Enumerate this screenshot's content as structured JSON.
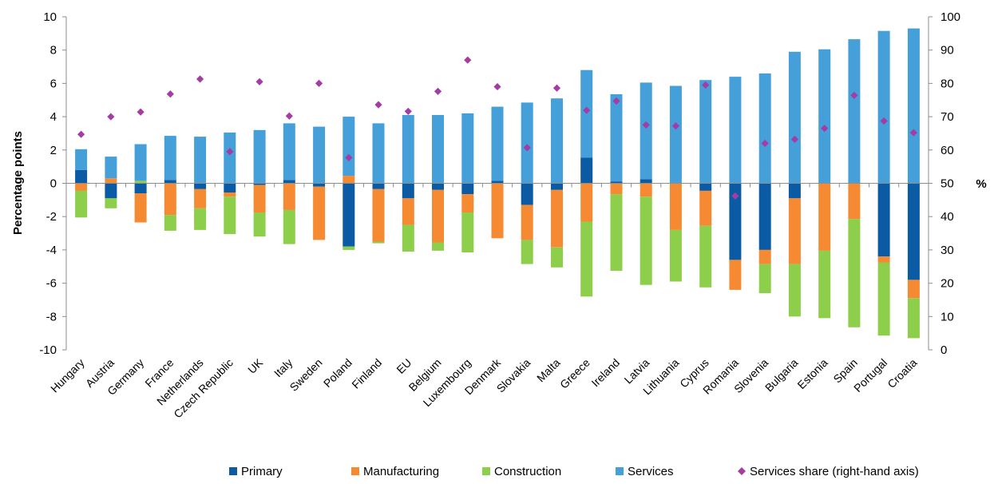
{
  "chart_data": {
    "type": "bar",
    "stacked": true,
    "title": "",
    "ylabel": "Percentage points",
    "y2label": "%",
    "ylim": [
      -10,
      10
    ],
    "y2lim": [
      0,
      100
    ],
    "yticks": [
      -10,
      -8,
      -6,
      -4,
      -2,
      0,
      2,
      4,
      6,
      8,
      10
    ],
    "y2ticks": [
      0,
      10,
      20,
      30,
      40,
      50,
      60,
      70,
      80,
      90,
      100
    ],
    "grid": false,
    "legend_position": "bottom",
    "categories": [
      "Hungary",
      "Austria",
      "Germany",
      "France",
      "Netherlands",
      "Czech Republic",
      "UK",
      "Italy",
      "Sweden",
      "Poland",
      "Finland",
      "EU",
      "Belgium",
      "Luxembourg",
      "Denmark",
      "Slovakia",
      "Malta",
      "Greece",
      "Ireland",
      "Latvia",
      "Lithuania",
      "Cyprus",
      "Romania",
      "Slovenia",
      "Bulgaria",
      "Estonia",
      "Spain",
      "Portugal",
      "Croatia"
    ],
    "series": [
      {
        "name": "Primary",
        "color": "#0b5aa4",
        "values": [
          0.8,
          -0.9,
          -0.6,
          0.2,
          -0.35,
          -0.55,
          -0.1,
          0.2,
          -0.2,
          -3.8,
          -0.35,
          -0.9,
          -0.4,
          -0.65,
          0.15,
          -1.3,
          -0.4,
          1.55,
          0.1,
          0.25,
          0.0,
          -0.45,
          -4.6,
          -4.0,
          -0.9,
          0.0,
          0.0,
          -4.4,
          -5.8
        ]
      },
      {
        "name": "Manufacturing",
        "color": "#f58a32",
        "values": [
          -0.45,
          0.3,
          -1.75,
          -1.9,
          -1.15,
          -0.25,
          -1.65,
          -1.6,
          -3.2,
          0.45,
          -3.15,
          -1.6,
          -3.15,
          -1.1,
          -3.3,
          -2.1,
          -3.45,
          -2.3,
          -0.65,
          -0.8,
          -2.8,
          -2.1,
          -1.8,
          -0.85,
          -3.95,
          -4.05,
          -2.15,
          -0.35,
          -1.1
        ]
      },
      {
        "name": "Construction",
        "color": "#8dcf4a",
        "values": [
          -1.6,
          -0.6,
          0.15,
          -0.95,
          -1.3,
          -2.25,
          -1.45,
          -2.05,
          0.0,
          -0.2,
          -0.1,
          -1.6,
          -0.5,
          -2.4,
          0.0,
          -1.45,
          -1.2,
          -4.5,
          -4.6,
          -5.3,
          -3.1,
          -3.7,
          0.0,
          -1.75,
          -3.15,
          -4.05,
          -6.5,
          -4.4,
          -2.4
        ]
      },
      {
        "name": "Services",
        "color": "#459fd9",
        "values": [
          1.25,
          1.3,
          2.2,
          2.65,
          2.8,
          3.05,
          3.2,
          3.4,
          3.4,
          3.55,
          3.6,
          4.1,
          4.1,
          4.2,
          4.45,
          4.85,
          5.1,
          5.25,
          5.25,
          5.8,
          5.85,
          6.2,
          6.4,
          6.6,
          7.9,
          8.05,
          8.65,
          9.15,
          9.3
        ]
      }
    ],
    "scatter_series": {
      "name": "Services share (right-hand axis)",
      "color": "#a43ca4",
      "axis": "right",
      "values": [
        64.7,
        70.0,
        71.4,
        76.8,
        81.3,
        59.5,
        80.5,
        70.2,
        80.0,
        57.7,
        73.6,
        71.6,
        77.6,
        87.0,
        79.0,
        60.7,
        78.6,
        71.9,
        74.7,
        67.5,
        67.2,
        79.5,
        46.2,
        62.0,
        63.2,
        66.5,
        76.4,
        68.7,
        65.2
      ]
    }
  }
}
